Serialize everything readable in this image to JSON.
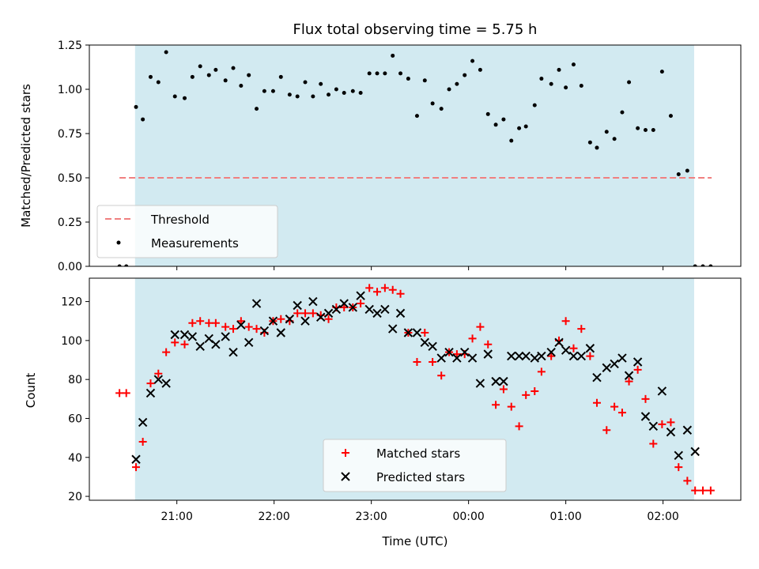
{
  "chart_data": [
    {
      "type": "scatter",
      "title": "Flux total observing time = 5.75 h",
      "xlabel": "",
      "ylabel": "Matched/Predicted stars",
      "xlim_hours": [
        20.1,
        26.8
      ],
      "ylim": [
        0,
        1.25
      ],
      "yticks": [
        0.0,
        0.25,
        0.5,
        0.75,
        1.0,
        1.25
      ],
      "ytick_labels": [
        "0.00",
        "0.25",
        "0.50",
        "0.75",
        "1.00",
        "1.25"
      ],
      "observing_window_hours": [
        20.57,
        26.32
      ],
      "legend_position": "lower-left",
      "threshold": {
        "name": "Threshold",
        "y": 0.5,
        "x_range": [
          20.41,
          26.5
        ],
        "color": "#f08080"
      },
      "series": [
        {
          "name": "Measurements",
          "color": "#000000",
          "x": [
            20.41,
            20.48,
            20.58,
            20.65,
            20.73,
            20.81,
            20.89,
            20.98,
            21.08,
            21.16,
            21.24,
            21.33,
            21.4,
            21.5,
            21.58,
            21.66,
            21.74,
            21.82,
            21.9,
            21.99,
            22.07,
            22.16,
            22.24,
            22.32,
            22.4,
            22.48,
            22.56,
            22.64,
            22.72,
            22.81,
            22.89,
            22.98,
            23.06,
            23.14,
            23.22,
            23.3,
            23.38,
            23.47,
            23.55,
            23.63,
            23.72,
            23.8,
            23.88,
            23.96,
            24.04,
            24.12,
            24.2,
            24.28,
            24.36,
            24.44,
            24.52,
            24.59,
            24.68,
            24.75,
            24.85,
            24.93,
            25.0,
            25.08,
            25.16,
            25.25,
            25.32,
            25.42,
            25.5,
            25.58,
            25.65,
            25.74,
            25.82,
            25.9,
            25.99,
            26.08,
            26.16,
            26.25,
            26.33,
            26.41,
            26.49
          ],
          "y": [
            0.0,
            0.0,
            0.9,
            0.83,
            1.07,
            1.04,
            1.21,
            0.96,
            0.95,
            1.07,
            1.13,
            1.08,
            1.11,
            1.05,
            1.12,
            1.02,
            1.08,
            0.89,
            0.99,
            0.99,
            1.07,
            0.97,
            0.96,
            1.04,
            0.96,
            1.03,
            0.97,
            1.0,
            0.98,
            0.99,
            0.98,
            1.09,
            1.09,
            1.09,
            1.19,
            1.09,
            1.06,
            0.85,
            1.05,
            0.92,
            0.89,
            1.0,
            1.03,
            1.08,
            1.16,
            1.11,
            0.86,
            0.8,
            0.83,
            0.71,
            0.78,
            0.79,
            0.91,
            1.06,
            1.03,
            1.11,
            1.01,
            1.14,
            1.02,
            0.7,
            0.67,
            0.76,
            0.72,
            0.87,
            1.04,
            0.78,
            0.77,
            0.77,
            1.1,
            0.85,
            0.52,
            0.54,
            0.0,
            0.0,
            0.0
          ]
        }
      ]
    },
    {
      "type": "scatter",
      "title": "",
      "xlabel": "Time (UTC)",
      "ylabel": "Count",
      "xlim_hours": [
        20.1,
        26.8
      ],
      "ylim": [
        18,
        132
      ],
      "yticks": [
        20,
        40,
        60,
        80,
        100,
        120
      ],
      "ytick_labels": [
        "20",
        "40",
        "60",
        "80",
        "100",
        "120"
      ],
      "xticks_hours": [
        21,
        22,
        23,
        24,
        25,
        26
      ],
      "xtick_labels": [
        "21:00",
        "22:00",
        "23:00",
        "00:00",
        "01:00",
        "02:00"
      ],
      "observing_window_hours": [
        20.57,
        26.32
      ],
      "legend_position": "lower-center",
      "series": [
        {
          "name": "Matched stars",
          "color": "#ff0000",
          "marker": "plus",
          "x": [
            20.41,
            20.48,
            20.58,
            20.65,
            20.73,
            20.81,
            20.89,
            20.98,
            21.08,
            21.16,
            21.24,
            21.33,
            21.4,
            21.5,
            21.58,
            21.66,
            21.74,
            21.82,
            21.9,
            21.99,
            22.07,
            22.16,
            22.24,
            22.32,
            22.4,
            22.48,
            22.56,
            22.64,
            22.72,
            22.81,
            22.89,
            22.98,
            23.06,
            23.14,
            23.22,
            23.3,
            23.38,
            23.47,
            23.55,
            23.63,
            23.72,
            23.8,
            23.88,
            23.96,
            24.04,
            24.12,
            24.2,
            24.28,
            24.36,
            24.44,
            24.52,
            24.59,
            24.68,
            24.75,
            24.85,
            24.93,
            25.0,
            25.08,
            25.16,
            25.25,
            25.32,
            25.42,
            25.5,
            25.58,
            25.65,
            25.74,
            25.82,
            25.9,
            25.99,
            26.08,
            26.16,
            26.25,
            26.33,
            26.41,
            26.49
          ],
          "y": [
            73,
            73,
            35,
            48,
            78,
            83,
            94,
            99,
            98,
            109,
            110,
            109,
            109,
            107,
            106,
            110,
            107,
            106,
            104,
            110,
            111,
            110,
            114,
            114,
            114,
            113,
            111,
            117,
            117,
            117,
            119,
            127,
            125,
            127,
            126,
            124,
            104,
            89,
            104,
            89,
            82,
            94,
            93,
            93,
            101,
            107,
            98,
            67,
            75,
            66,
            56,
            72,
            74,
            84,
            92,
            100,
            110,
            96,
            106,
            92,
            68,
            54,
            66,
            63,
            79,
            85,
            70,
            47,
            57,
            58,
            35,
            28,
            23,
            23,
            23
          ]
        },
        {
          "name": "Predicted stars",
          "color": "#000000",
          "marker": "x",
          "x": [
            20.58,
            20.65,
            20.73,
            20.81,
            20.89,
            20.98,
            21.08,
            21.16,
            21.24,
            21.33,
            21.4,
            21.5,
            21.58,
            21.66,
            21.74,
            21.82,
            21.9,
            21.99,
            22.07,
            22.16,
            22.24,
            22.32,
            22.4,
            22.48,
            22.56,
            22.64,
            22.72,
            22.81,
            22.89,
            22.98,
            23.06,
            23.14,
            23.22,
            23.3,
            23.38,
            23.47,
            23.55,
            23.63,
            23.72,
            23.8,
            23.88,
            23.96,
            24.04,
            24.12,
            24.2,
            24.28,
            24.36,
            24.44,
            24.52,
            24.59,
            24.68,
            24.75,
            24.85,
            24.93,
            25.0,
            25.08,
            25.16,
            25.25,
            25.32,
            25.42,
            25.5,
            25.58,
            25.65,
            25.74,
            25.82,
            25.9,
            25.99,
            26.08,
            26.16,
            26.25,
            26.33
          ],
          "y": [
            39,
            58,
            73,
            80,
            78,
            103,
            103,
            102,
            97,
            101,
            98,
            102,
            94,
            108,
            99,
            119,
            105,
            110,
            104,
            111,
            118,
            110,
            120,
            112,
            114,
            116,
            119,
            117,
            123,
            116,
            114,
            116,
            106,
            114,
            104,
            104,
            99,
            97,
            91,
            94,
            91,
            94,
            91,
            78,
            93,
            79,
            79,
            92,
            92,
            92,
            91,
            92,
            94,
            99,
            95,
            92,
            92,
            96,
            81,
            86,
            88,
            91,
            82,
            89,
            61,
            56,
            74,
            53,
            41,
            54,
            43
          ]
        }
      ]
    }
  ]
}
